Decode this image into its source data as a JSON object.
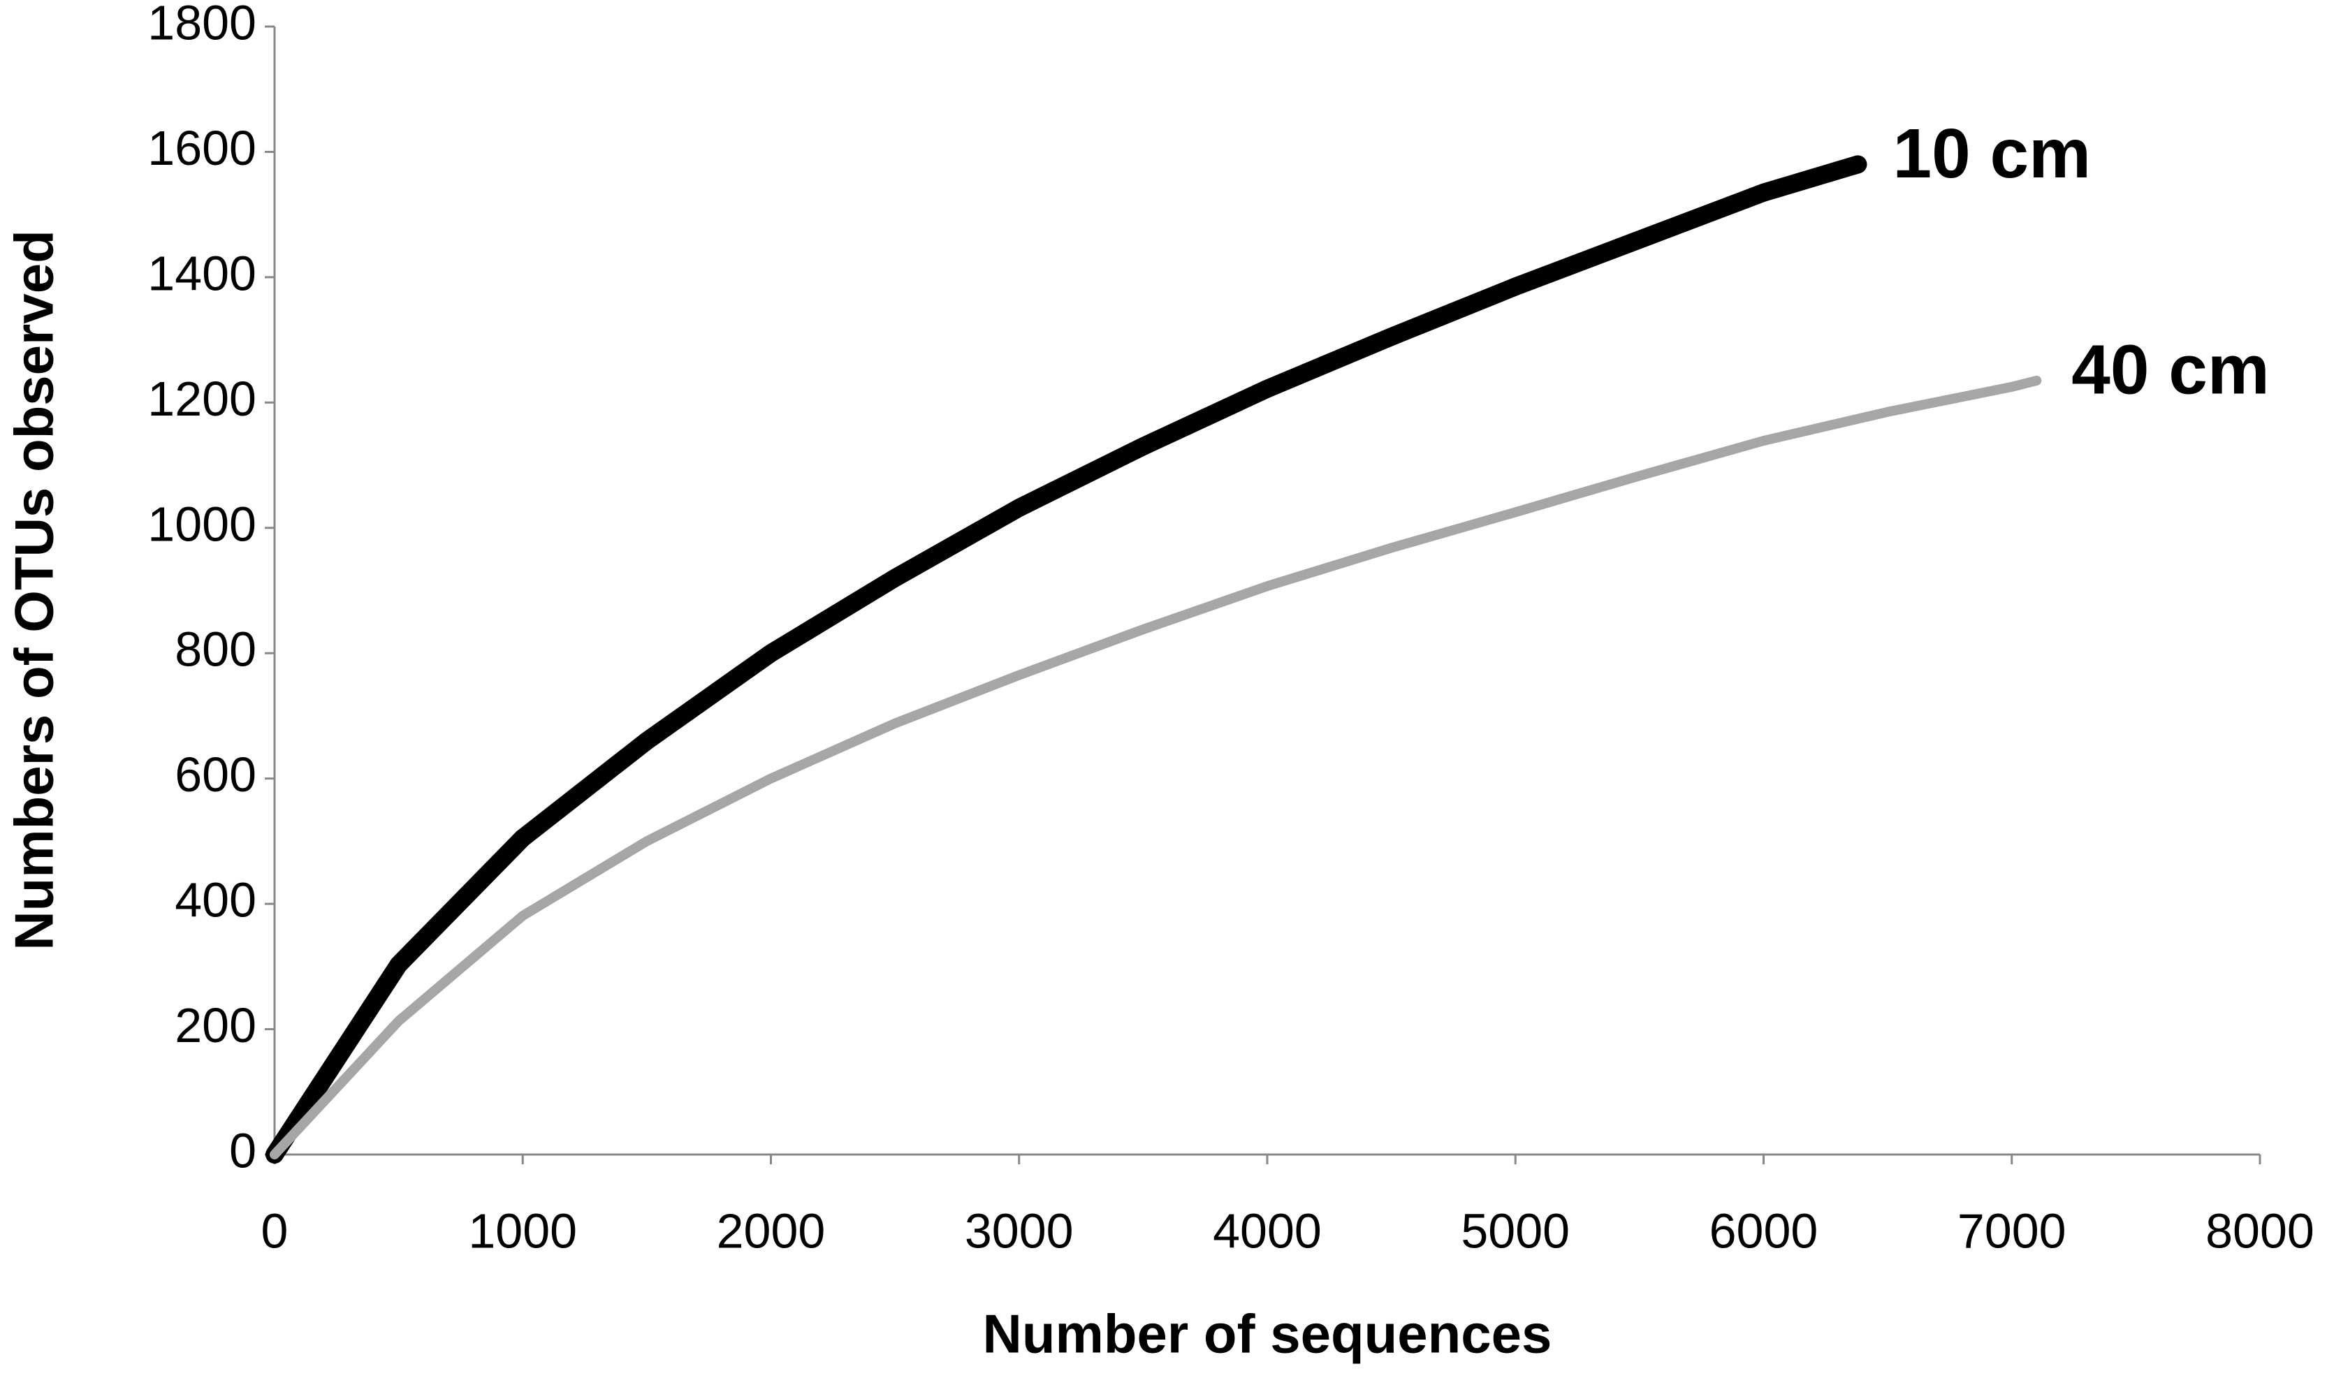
{
  "chart_data": {
    "type": "line",
    "x_label": "Number of sequences",
    "y_label": "Numbers of OTUs observed",
    "xlim": [
      0,
      8000
    ],
    "xticks": [
      0,
      1000,
      2000,
      3000,
      4000,
      5000,
      6000,
      7000,
      8000
    ],
    "ylim": [
      0,
      1800
    ],
    "yticks": [
      0,
      200,
      400,
      600,
      800,
      1000,
      1200,
      1400,
      1600,
      1800
    ],
    "grid": false,
    "series": [
      {
        "name": "10 cm",
        "color": "#000000",
        "x": [
          0,
          500,
          1000,
          1500,
          2000,
          2500,
          3000,
          3500,
          4000,
          4500,
          5000,
          5500,
          6000,
          6380
        ],
        "values": [
          0,
          303,
          505,
          660,
          800,
          920,
          1032,
          1130,
          1222,
          1305,
          1385,
          1460,
          1535,
          1580
        ]
      },
      {
        "name": "40 cm",
        "color": "#a6a6a6",
        "x": [
          0,
          500,
          1000,
          1500,
          2000,
          2500,
          3000,
          3500,
          4000,
          4500,
          5000,
          5500,
          6000,
          6500,
          7000,
          7100
        ],
        "values": [
          0,
          213,
          381,
          500,
          600,
          688,
          765,
          838,
          907,
          968,
          1025,
          1083,
          1139,
          1185,
          1225,
          1235
        ]
      }
    ]
  }
}
